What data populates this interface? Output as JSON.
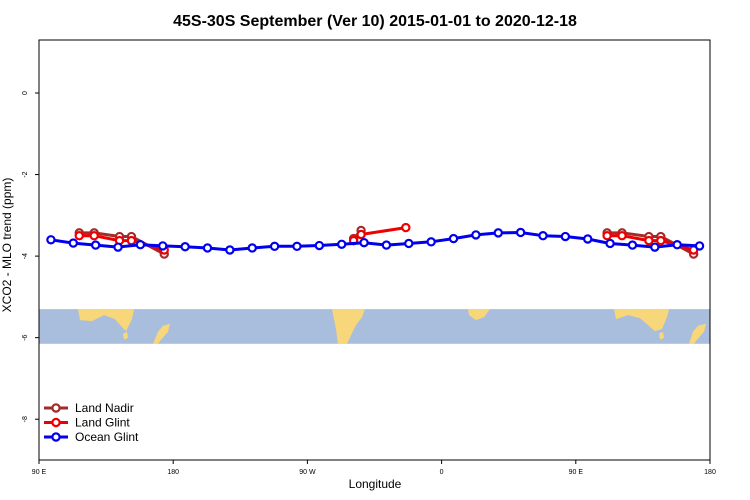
{
  "chart_data": {
    "type": "line",
    "title": "45S-30S September (Ver 10)   2015-01-01 to 2020-12-18",
    "xlabel": "Longitude",
    "ylabel": "XCO2 - MLO trend (ppm)",
    "x_ticks": [
      {
        "value": 90,
        "label": "90 E"
      },
      {
        "value": 180,
        "label": "180"
      },
      {
        "value": 270,
        "label": "90 W"
      },
      {
        "value": 360,
        "label": "0"
      },
      {
        "value": 450,
        "label": "90 E"
      },
      {
        "value": 540,
        "label": "180"
      }
    ],
    "y_ticks": [
      0,
      -2,
      -4,
      -6,
      -8
    ],
    "xlim": [
      90,
      540
    ],
    "ylim": [
      -9,
      1.3
    ],
    "grid": false,
    "legend_position": "bottom-left",
    "map_band": {
      "ylim": [
        -6.15,
        -5.3
      ],
      "ocean_color": "#a9bddd",
      "land_color": "#f8d77a"
    },
    "series": [
      {
        "name": "Land Nadir",
        "color": "#a52a2a",
        "points": [
          [
            117,
            -3.43
          ],
          [
            127,
            -3.43
          ],
          [
            144,
            -3.52
          ],
          [
            152,
            -3.52
          ],
          [
            174,
            -3.95
          ],
          [
            301,
            -3.57
          ],
          [
            306,
            -3.37
          ],
          [
            471,
            -3.43
          ],
          [
            481,
            -3.43
          ],
          [
            499,
            -3.52
          ],
          [
            507,
            -3.52
          ],
          [
            529,
            -3.95
          ]
        ]
      },
      {
        "name": "Land Glint",
        "color": "#ee0000",
        "points": [
          [
            117,
            -3.5
          ],
          [
            127,
            -3.5
          ],
          [
            144,
            -3.62
          ],
          [
            152,
            -3.62
          ],
          [
            174,
            -3.85
          ],
          [
            301,
            -3.62
          ],
          [
            306,
            -3.47
          ],
          [
            336,
            -3.3
          ],
          [
            471,
            -3.5
          ],
          [
            481,
            -3.5
          ],
          [
            499,
            -3.62
          ],
          [
            507,
            -3.62
          ],
          [
            529,
            -3.85
          ]
        ]
      },
      {
        "name": "Ocean Glint",
        "color": "#0000ee",
        "points": [
          [
            98,
            -3.6
          ],
          [
            113,
            -3.68
          ],
          [
            128,
            -3.73
          ],
          [
            143,
            -3.78
          ],
          [
            158,
            -3.72
          ],
          [
            173,
            -3.75
          ],
          [
            188,
            -3.77
          ],
          [
            203,
            -3.8
          ],
          [
            218,
            -3.85
          ],
          [
            233,
            -3.8
          ],
          [
            248,
            -3.76
          ],
          [
            263,
            -3.76
          ],
          [
            278,
            -3.74
          ],
          [
            293,
            -3.71
          ],
          [
            308,
            -3.67
          ],
          [
            323,
            -3.73
          ],
          [
            338,
            -3.69
          ],
          [
            353,
            -3.65
          ],
          [
            368,
            -3.57
          ],
          [
            383,
            -3.48
          ],
          [
            398,
            -3.43
          ],
          [
            413,
            -3.42
          ],
          [
            428,
            -3.5
          ],
          [
            443,
            -3.52
          ],
          [
            458,
            -3.58
          ],
          [
            473,
            -3.69
          ],
          [
            488,
            -3.73
          ],
          [
            503,
            -3.78
          ],
          [
            518,
            -3.72
          ],
          [
            533,
            -3.75
          ]
        ]
      }
    ]
  }
}
